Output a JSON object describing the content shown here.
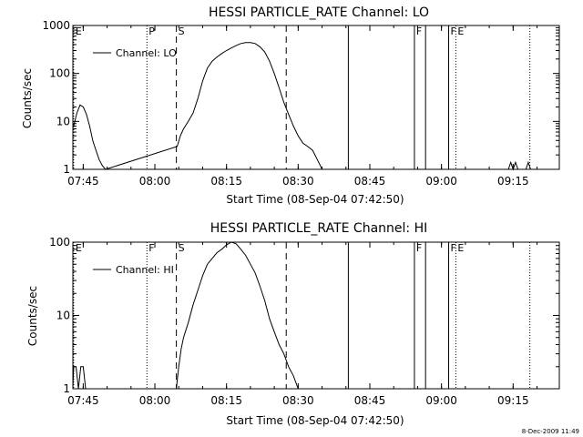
{
  "footer": {
    "timestamp": "8-Dec-2009 11:49"
  },
  "chart_data": [
    {
      "type": "line",
      "title": "HESSI PARTICLE_RATE Channel: LO",
      "xlabel": "Start Time (08-Sep-04 07:42:50)",
      "ylabel": "Counts/sec",
      "yscale": "log",
      "ylim": [
        1,
        1000
      ],
      "xlim": [
        "07:42:50",
        "09:24:40"
      ],
      "x_ticks": [
        "07:45",
        "08:00",
        "08:15",
        "08:30",
        "08:45",
        "09:00",
        "09:15"
      ],
      "y_ticks": [
        "1",
        "10",
        "100",
        "1000"
      ],
      "grid": false,
      "legend_position": "top-left",
      "series": [
        {
          "name": "Channel: LO",
          "x": [
            "07:43:00",
            "07:43:40",
            "07:44:20",
            "07:45:00",
            "07:45:40",
            "07:46:20",
            "07:47:00",
            "07:47:40",
            "07:48:20",
            "07:49:00",
            "07:49:40",
            "08:04:40",
            "08:05:20",
            "08:06:00",
            "08:07:00",
            "08:08:00",
            "08:09:00",
            "08:10:00",
            "08:11:00",
            "08:12:00",
            "08:13:00",
            "08:14:00",
            "08:15:00",
            "08:16:00",
            "08:17:00",
            "08:18:00",
            "08:19:00",
            "08:20:00",
            "08:21:00",
            "08:22:00",
            "08:23:00",
            "08:24:00",
            "08:25:00",
            "08:26:00",
            "08:27:00",
            "08:28:00",
            "08:29:00",
            "08:30:00",
            "08:31:00",
            "08:32:00",
            "08:33:00",
            "08:34:00",
            "08:35:00"
          ],
          "y": [
            8,
            15,
            22,
            20,
            14,
            8,
            4,
            2.5,
            1.6,
            1.2,
            1,
            3,
            5,
            7,
            10,
            15,
            30,
            70,
            130,
            180,
            220,
            260,
            300,
            340,
            380,
            420,
            440,
            440,
            420,
            360,
            280,
            180,
            100,
            50,
            25,
            14,
            8,
            5,
            3.5,
            3,
            2.5,
            1.6,
            1
          ]
        }
      ],
      "markers": [
        {
          "x": "07:43:00",
          "label": "E",
          "style": "dotted"
        },
        {
          "x": "07:58:20",
          "label": "P",
          "style": "dotted"
        },
        {
          "x": "08:04:30",
          "label": "S",
          "style": "dashed"
        },
        {
          "x": "08:27:30",
          "label": "",
          "style": "dashed"
        },
        {
          "x": "08:40:30",
          "label": "",
          "style": "solid"
        },
        {
          "x": "08:54:20",
          "label": "F",
          "style": "solid"
        },
        {
          "x": "08:56:40",
          "label": "",
          "style": "solid"
        },
        {
          "x": "09:01:30",
          "label": "F",
          "style": "solid"
        },
        {
          "x": "09:03:00",
          "label": "E",
          "style": "dotted"
        },
        {
          "x": "09:18:30",
          "label": "",
          "style": "dotted"
        }
      ],
      "extra_blips": [
        {
          "x": [
            "09:14:00",
            "09:14:30",
            "09:15:00",
            "09:15:30",
            "09:16:00"
          ],
          "y": [
            1,
            1.4,
            1,
            1.4,
            1
          ]
        },
        {
          "x": [
            "09:17:40",
            "09:18:10",
            "09:18:40"
          ],
          "y": [
            1,
            1.4,
            1
          ]
        }
      ]
    },
    {
      "type": "line",
      "title": "HESSI PARTICLE_RATE Channel: HI",
      "xlabel": "Start Time (08-Sep-04 07:42:50)",
      "ylabel": "Counts/sec",
      "yscale": "log",
      "ylim": [
        1,
        100
      ],
      "xlim": [
        "07:42:50",
        "09:24:40"
      ],
      "x_ticks": [
        "07:45",
        "08:00",
        "08:15",
        "08:30",
        "08:45",
        "09:00",
        "09:15"
      ],
      "y_ticks": [
        "1",
        "10",
        "100"
      ],
      "grid": false,
      "legend_position": "top-left",
      "series": [
        {
          "name": "Channel: HI",
          "x": [
            "07:42:50",
            "07:43:00",
            "07:43:30",
            "07:44:00",
            "07:44:30",
            "07:45:00",
            "07:45:30",
            "08:04:30",
            "08:05:00",
            "08:05:30",
            "08:06:00",
            "08:07:00",
            "08:08:00",
            "08:09:00",
            "08:10:00",
            "08:11:00",
            "08:12:00",
            "08:13:00",
            "08:14:00",
            "08:15:00",
            "08:16:00",
            "08:17:00",
            "08:18:00",
            "08:19:00",
            "08:20:00",
            "08:21:00",
            "08:22:00",
            "08:23:00",
            "08:24:00",
            "08:25:00",
            "08:26:00",
            "08:27:00",
            "08:28:00",
            "08:29:00",
            "08:30:00"
          ],
          "y": [
            1,
            2,
            2,
            1,
            2,
            2,
            1,
            1,
            2,
            3.5,
            5,
            8,
            14,
            22,
            35,
            50,
            60,
            72,
            80,
            92,
            100,
            95,
            80,
            66,
            50,
            38,
            25,
            16,
            9,
            6,
            4,
            3,
            2,
            1.5,
            1
          ]
        }
      ],
      "markers": [
        {
          "x": "07:43:00",
          "label": "E",
          "style": "dotted"
        },
        {
          "x": "07:58:20",
          "label": "F",
          "style": "dotted"
        },
        {
          "x": "08:04:30",
          "label": "S",
          "style": "dashed"
        },
        {
          "x": "08:27:30",
          "label": "",
          "style": "dashed"
        },
        {
          "x": "08:40:30",
          "label": "",
          "style": "solid"
        },
        {
          "x": "08:54:20",
          "label": "F",
          "style": "solid"
        },
        {
          "x": "08:56:40",
          "label": "",
          "style": "solid"
        },
        {
          "x": "09:01:30",
          "label": "F",
          "style": "solid"
        },
        {
          "x": "09:03:00",
          "label": "E",
          "style": "dotted"
        },
        {
          "x": "09:18:30",
          "label": "",
          "style": "dotted"
        }
      ],
      "extra_blips": []
    }
  ]
}
